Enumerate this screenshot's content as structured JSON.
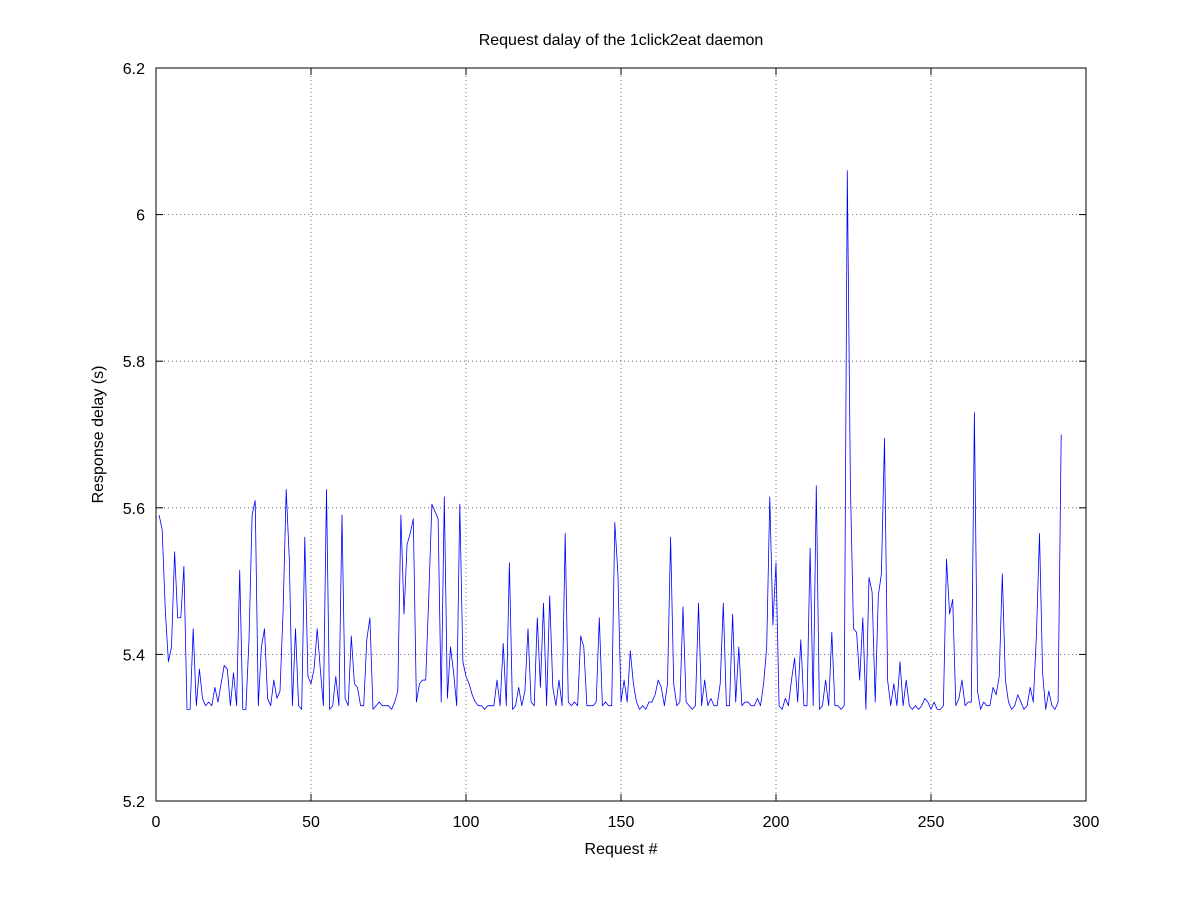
{
  "chart_data": {
    "type": "line",
    "title": "Request dalay of the 1click2eat daemon",
    "xlabel": "Request #",
    "ylabel": "Response delay (s)",
    "xlim": [
      0,
      300
    ],
    "ylim": [
      5.2,
      6.2
    ],
    "xticks": [
      0,
      50,
      100,
      150,
      200,
      250,
      300
    ],
    "yticks": [
      5.2,
      5.4,
      5.6,
      5.8,
      6.0,
      6.2
    ],
    "xtick_labels": [
      "0",
      "50",
      "100",
      "150",
      "200",
      "250",
      "300"
    ],
    "ytick_labels": [
      "5.2",
      "5.4",
      "5.6",
      "5.8",
      "6",
      "6.2"
    ],
    "grid": true,
    "legend": "none",
    "series_color": "#0000ff",
    "series": [
      {
        "x": [
          1,
          2,
          3,
          4,
          5,
          6,
          7,
          8,
          9,
          10,
          11,
          12,
          13,
          14,
          15,
          16,
          17,
          18,
          19,
          20,
          21,
          22,
          23,
          24,
          25,
          26,
          27,
          28,
          29,
          30,
          31,
          32,
          33,
          34,
          35,
          36,
          37,
          38,
          39,
          40,
          41,
          42,
          43,
          44,
          45,
          46,
          47,
          48,
          49,
          50,
          51,
          52,
          53,
          54,
          55,
          56,
          57,
          58,
          59,
          60,
          61,
          62,
          63,
          64,
          65,
          66,
          67,
          68,
          69,
          70,
          71,
          72,
          73,
          74,
          75,
          76,
          77,
          78,
          79,
          80,
          81,
          82,
          83,
          84,
          85,
          86,
          87,
          88,
          89,
          90,
          91,
          92,
          93,
          94,
          95,
          96,
          97,
          98,
          99,
          100,
          101,
          102,
          103,
          104,
          105,
          106,
          107,
          108,
          109,
          110,
          111,
          112,
          113,
          114,
          115,
          116,
          117,
          118,
          119,
          120,
          121,
          122,
          123,
          124,
          125,
          126,
          127,
          128,
          129,
          130,
          131,
          132,
          133,
          134,
          135,
          136,
          137,
          138,
          139,
          140,
          141,
          142,
          143,
          144,
          145,
          146,
          147,
          148,
          149,
          150,
          151,
          152,
          153,
          154,
          155,
          156,
          157,
          158,
          159,
          160,
          161,
          162,
          163,
          164,
          165,
          166,
          167,
          168,
          169,
          170,
          171,
          172,
          173,
          174,
          175,
          176,
          177,
          178,
          179,
          180,
          181,
          182,
          183,
          184,
          185,
          186,
          187,
          188,
          189,
          190,
          191,
          192,
          193,
          194,
          195,
          196,
          197,
          198,
          199,
          200,
          201,
          202,
          203,
          204,
          205,
          206,
          207,
          208,
          209,
          210,
          211,
          212,
          213,
          214,
          215,
          216,
          217,
          218,
          219,
          220,
          221,
          222,
          223,
          224,
          225,
          226,
          227,
          228,
          229,
          230,
          231,
          232,
          233,
          234,
          235,
          236,
          237,
          238,
          239,
          240,
          241,
          242,
          243,
          244,
          245,
          246,
          247,
          248,
          249,
          250,
          251,
          252,
          253,
          254,
          255,
          256,
          257,
          258,
          259,
          260,
          261,
          262,
          263,
          264,
          265,
          266,
          267,
          268,
          269,
          270,
          271,
          272,
          273,
          274,
          275,
          276,
          277,
          278,
          279,
          280,
          281,
          282,
          283,
          284,
          285,
          286,
          287,
          288,
          289,
          290,
          291,
          292
        ],
        "y": [
          5.59,
          5.57,
          5.46,
          5.39,
          5.41,
          5.54,
          5.45,
          5.45,
          5.52,
          5.325,
          5.325,
          5.435,
          5.33,
          5.38,
          5.34,
          5.33,
          5.335,
          5.33,
          5.355,
          5.335,
          5.36,
          5.385,
          5.38,
          5.33,
          5.375,
          5.33,
          5.515,
          5.325,
          5.325,
          5.42,
          5.59,
          5.61,
          5.33,
          5.41,
          5.435,
          5.34,
          5.33,
          5.365,
          5.34,
          5.35,
          5.46,
          5.625,
          5.53,
          5.33,
          5.435,
          5.33,
          5.325,
          5.56,
          5.37,
          5.36,
          5.38,
          5.435,
          5.38,
          5.33,
          5.625,
          5.325,
          5.33,
          5.37,
          5.33,
          5.59,
          5.34,
          5.33,
          5.425,
          5.36,
          5.355,
          5.33,
          5.33,
          5.42,
          5.45,
          5.325,
          5.33,
          5.335,
          5.33,
          5.33,
          5.33,
          5.325,
          5.335,
          5.35,
          5.59,
          5.455,
          5.55,
          5.565,
          5.585,
          5.335,
          5.36,
          5.365,
          5.365,
          5.48,
          5.605,
          5.595,
          5.585,
          5.335,
          5.615,
          5.34,
          5.41,
          5.375,
          5.33,
          5.605,
          5.39,
          5.37,
          5.36,
          5.345,
          5.335,
          5.33,
          5.33,
          5.325,
          5.33,
          5.33,
          5.33,
          5.365,
          5.33,
          5.415,
          5.33,
          5.525,
          5.325,
          5.33,
          5.355,
          5.33,
          5.35,
          5.435,
          5.335,
          5.33,
          5.45,
          5.355,
          5.47,
          5.33,
          5.48,
          5.355,
          5.33,
          5.365,
          5.33,
          5.565,
          5.335,
          5.33,
          5.335,
          5.33,
          5.425,
          5.41,
          5.33,
          5.33,
          5.33,
          5.335,
          5.45,
          5.33,
          5.335,
          5.33,
          5.33,
          5.58,
          5.51,
          5.335,
          5.365,
          5.335,
          5.405,
          5.36,
          5.335,
          5.325,
          5.33,
          5.325,
          5.335,
          5.335,
          5.345,
          5.365,
          5.355,
          5.33,
          5.36,
          5.56,
          5.36,
          5.33,
          5.335,
          5.465,
          5.335,
          5.33,
          5.325,
          5.33,
          5.47,
          5.33,
          5.365,
          5.33,
          5.34,
          5.33,
          5.33,
          5.36,
          5.47,
          5.33,
          5.33,
          5.455,
          5.335,
          5.41,
          5.33,
          5.335,
          5.335,
          5.33,
          5.33,
          5.34,
          5.33,
          5.36,
          5.41,
          5.615,
          5.44,
          5.525,
          5.33,
          5.325,
          5.34,
          5.33,
          5.365,
          5.395,
          5.335,
          5.42,
          5.33,
          5.33,
          5.545,
          5.33,
          5.63,
          5.325,
          5.33,
          5.365,
          5.33,
          5.43,
          5.33,
          5.33,
          5.325,
          5.33,
          6.06,
          5.63,
          5.435,
          5.43,
          5.365,
          5.45,
          5.325,
          5.505,
          5.485,
          5.335,
          5.48,
          5.51,
          5.695,
          5.365,
          5.33,
          5.36,
          5.33,
          5.39,
          5.33,
          5.365,
          5.33,
          5.325,
          5.33,
          5.325,
          5.33,
          5.34,
          5.335,
          5.325,
          5.335,
          5.325,
          5.325,
          5.33,
          5.53,
          5.455,
          5.475,
          5.33,
          5.34,
          5.365,
          5.33,
          5.335,
          5.335,
          5.73,
          5.35,
          5.325,
          5.335,
          5.33,
          5.33,
          5.355,
          5.345,
          5.37,
          5.51,
          5.365,
          5.335,
          5.325,
          5.33,
          5.345,
          5.335,
          5.325,
          5.33,
          5.355,
          5.335,
          5.425,
          5.565,
          5.375,
          5.325,
          5.35,
          5.33,
          5.325,
          5.335,
          5.7
        ]
      }
    ]
  }
}
